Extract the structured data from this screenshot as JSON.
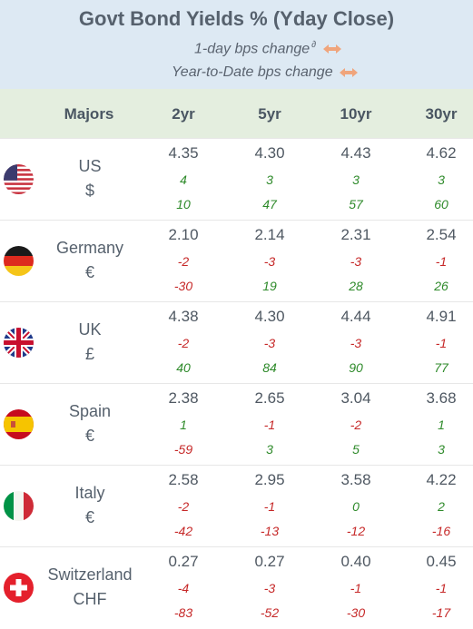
{
  "header": {
    "title": "Govt Bond Yields %  (Yday Close)",
    "subtitle_1day": "1-day bps change",
    "subtitle_1day_sup": "∂",
    "subtitle_ytd": "Year-to-Date bps change"
  },
  "columns": {
    "label": "Majors",
    "tenors": [
      "2yr",
      "5yr",
      "10yr",
      "30yr"
    ]
  },
  "colors": {
    "header_bg": "#dde9f3",
    "colhdr_bg": "#e4eedf",
    "positive": "#2e8a2a",
    "negative": "#c62828",
    "arrow": "#f0a57c"
  },
  "chart_data": {
    "type": "table",
    "title": "Govt Bond Yields %  (Yday Close)",
    "columns": [
      "2yr",
      "5yr",
      "10yr",
      "30yr"
    ],
    "rows": [
      {
        "country": "US",
        "currency": "$",
        "flag": "us-flag-icon",
        "yields": [
          "4.35",
          "4.30",
          "4.43",
          "4.62"
        ],
        "day_change": [
          "4",
          "3",
          "3",
          "3"
        ],
        "ytd_change": [
          "10",
          "47",
          "57",
          "60"
        ]
      },
      {
        "country": "Germany",
        "currency": "€",
        "flag": "germany-flag-icon",
        "yields": [
          "2.10",
          "2.14",
          "2.31",
          "2.54"
        ],
        "day_change": [
          "-2",
          "-3",
          "-3",
          "-1"
        ],
        "ytd_change": [
          "-30",
          "19",
          "28",
          "26"
        ]
      },
      {
        "country": "UK",
        "currency": "£",
        "flag": "uk-flag-icon",
        "yields": [
          "4.38",
          "4.30",
          "4.44",
          "4.91"
        ],
        "day_change": [
          "-2",
          "-3",
          "-3",
          "-1"
        ],
        "ytd_change": [
          "40",
          "84",
          "90",
          "77"
        ]
      },
      {
        "country": "Spain",
        "currency": "€",
        "flag": "spain-flag-icon",
        "yields": [
          "2.38",
          "2.65",
          "3.04",
          "3.68"
        ],
        "day_change": [
          "1",
          "-1",
          "-2",
          "1"
        ],
        "ytd_change": [
          "-59",
          "3",
          "5",
          "3"
        ]
      },
      {
        "country": "Italy",
        "currency": "€",
        "flag": "italy-flag-icon",
        "yields": [
          "2.58",
          "2.95",
          "3.58",
          "4.22"
        ],
        "day_change": [
          "-2",
          "-1",
          "0",
          "2"
        ],
        "ytd_change": [
          "-42",
          "-13",
          "-12",
          "-16"
        ]
      },
      {
        "country": "Switzerland",
        "currency": "CHF",
        "flag": "switzerland-flag-icon",
        "yields": [
          "0.27",
          "0.27",
          "0.40",
          "0.45"
        ],
        "day_change": [
          "-4",
          "-3",
          "-1",
          "-1"
        ],
        "ytd_change": [
          "-83",
          "-52",
          "-30",
          "-17"
        ]
      }
    ]
  }
}
